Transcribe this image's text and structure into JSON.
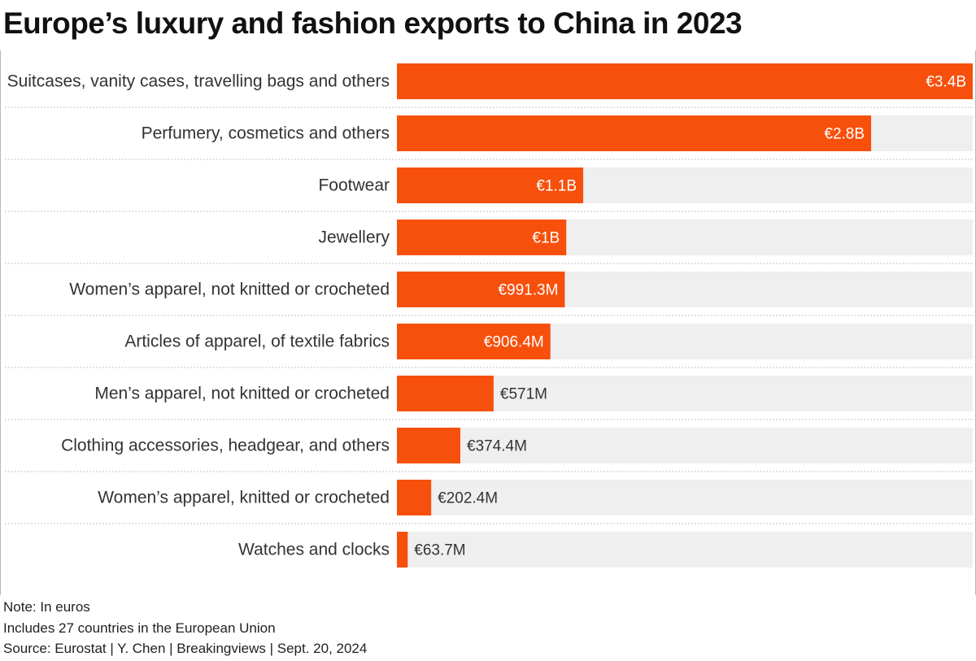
{
  "title": "Europe’s luxury and fashion exports to China in 2023",
  "chart_data": {
    "type": "bar",
    "orientation": "horizontal",
    "title": "Europe’s luxury and fashion exports to China in 2023",
    "categories": [
      "Suitcases, vanity cases, travelling bags and others",
      "Perfumery, cosmetics and others",
      "Footwear",
      "Jewellery",
      "Women’s apparel, not knitted or crocheted",
      "Articles of apparel, of textile fabrics",
      "Men’s apparel, not knitted or crocheted",
      "Clothing accessories, headgear, and others",
      "Women’s apparel, knitted or crocheted",
      "Watches and clocks"
    ],
    "values": [
      3400000000,
      2800000000,
      1100000000,
      1000000000,
      991300000,
      906400000,
      571000000,
      374400000,
      202400000,
      63700000
    ],
    "value_labels": [
      "€3.4B",
      "€2.8B",
      "€1.1B",
      "€1B",
      "€991.3M",
      "€906.4M",
      "€571M",
      "€374.4M",
      "€202.4M",
      "€63.7M"
    ],
    "xlim": [
      0,
      3400000000
    ],
    "grid": false,
    "colors": {
      "bar": "#f7500d",
      "track": "#efefef",
      "label_inside": "#ffffff",
      "label_outside": "#333333",
      "separator": "#c4c4c4"
    }
  },
  "notes": [
    "Note: In euros",
    "Includes 27 countries in the European Union",
    "Source: Eurostat | Y. Chen | Breakingviews | Sept. 20, 2024"
  ]
}
